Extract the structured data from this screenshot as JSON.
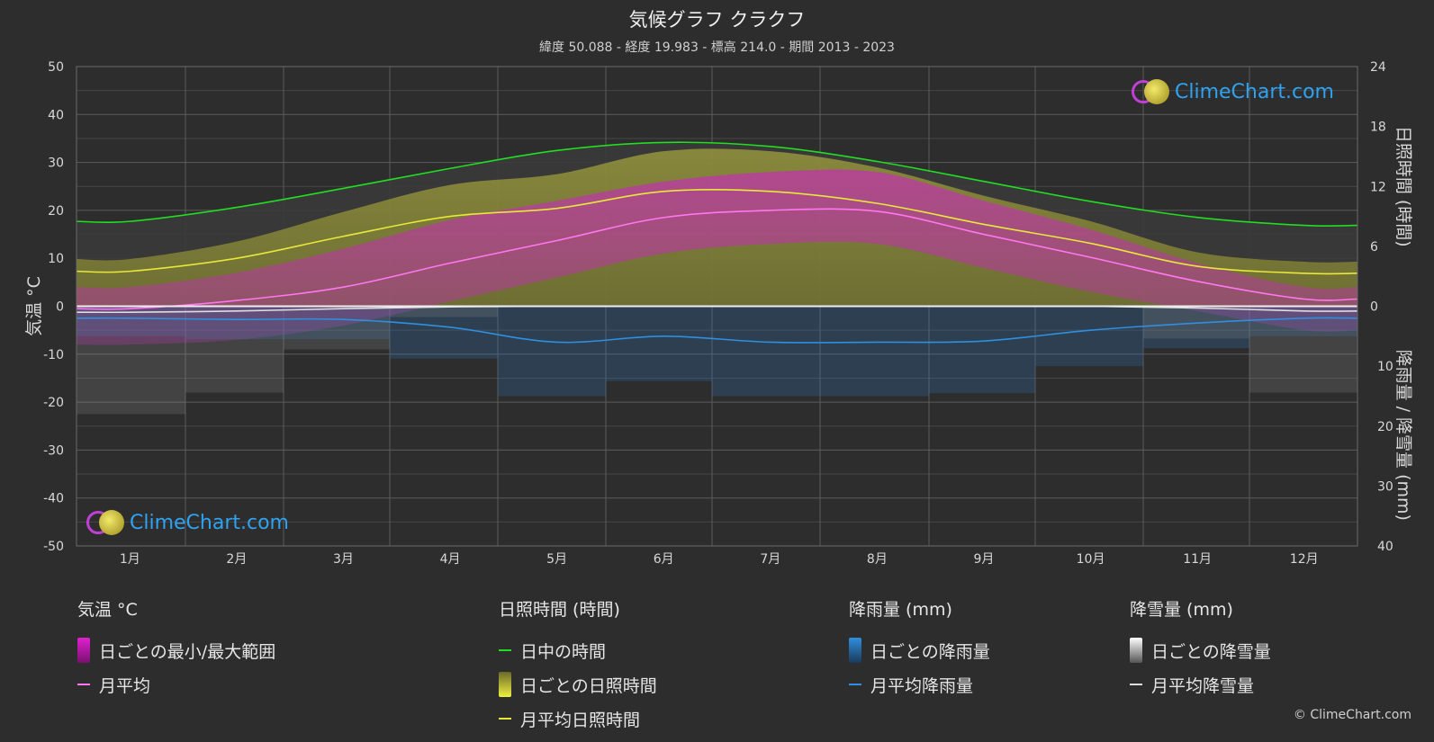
{
  "header": {
    "title": "気候グラフ クラクフ",
    "subtitle": "緯度 50.088 - 経度 19.983 - 標高 214.0 - 期間 2013 - 2023"
  },
  "logo_text": "ClimeChart.com",
  "copyright": "© ClimeChart.com",
  "chart_data": {
    "type": "line",
    "categories": [
      "1月",
      "2月",
      "3月",
      "4月",
      "5月",
      "6月",
      "7月",
      "8月",
      "9月",
      "10月",
      "11月",
      "12月"
    ],
    "left_axis": {
      "label": "気温 °C",
      "ylim": [
        -50,
        50
      ],
      "ticks": [
        "50",
        "40",
        "30",
        "20",
        "10",
        "0",
        "-10",
        "-20",
        "-30",
        "-40",
        "-50"
      ]
    },
    "right_axis_top": {
      "label": "日照時間 (時間)",
      "ylim": [
        0,
        24
      ],
      "ticks": [
        "24",
        "18",
        "12",
        "6",
        "0"
      ]
    },
    "right_axis_bottom": {
      "label": "降雨量 / 降雪量 (mm)",
      "ylim": [
        0,
        40
      ],
      "ticks": [
        "10",
        "20",
        "30",
        "40"
      ]
    },
    "grid": true,
    "series": [
      {
        "name": "日中の時間",
        "axis": "sunshine_hours",
        "color": "#22dd22",
        "values": [
          8.5,
          9.9,
          11.8,
          13.8,
          15.6,
          16.4,
          16.0,
          14.5,
          12.5,
          10.5,
          8.9,
          8.1
        ]
      },
      {
        "name": "月平均日照時間",
        "axis": "sunshine_hours",
        "color": "#e8e83a",
        "values": [
          3.5,
          4.8,
          7.0,
          9.0,
          9.8,
          11.5,
          11.5,
          10.3,
          8.2,
          6.3,
          4.0,
          3.3
        ]
      },
      {
        "name": "月平均",
        "axis": "temperature_c",
        "color": "#ff77ee",
        "values": [
          -0.5,
          1.2,
          4.0,
          9.0,
          13.7,
          18.5,
          20.0,
          19.8,
          15.0,
          10.2,
          5.2,
          1.5
        ]
      },
      {
        "name": "月平均降雨量",
        "axis": "precip_mm",
        "color": "#2f8fe0",
        "values": [
          2.0,
          2.2,
          2.2,
          3.5,
          6.0,
          5.0,
          6.0,
          6.0,
          5.8,
          4.0,
          2.8,
          2.0
        ]
      },
      {
        "name": "月平均降雪量",
        "axis": "precip_mm",
        "color": "#dddddd",
        "values": [
          1.0,
          0.8,
          0.4,
          0.1,
          0.0,
          0.0,
          0.0,
          0.0,
          0.0,
          0.0,
          0.3,
          0.8
        ]
      }
    ],
    "daily_temp_range_monthly": {
      "min": [
        -8,
        -7,
        -4,
        1,
        6,
        11,
        13,
        13,
        8,
        3,
        -1,
        -5
      ],
      "max": [
        4,
        7,
        12,
        18,
        22,
        26,
        28,
        28,
        22,
        16,
        9,
        4
      ]
    },
    "daily_sunshine_monthly": [
      3.5,
      4.8,
      7.0,
      9.0,
      9.8,
      11.5,
      11.5,
      10.3,
      8.2,
      6.3,
      4.0,
      3.3
    ],
    "daily_rain_monthly": [
      2.0,
      2.2,
      2.2,
      3.5,
      6.0,
      5.0,
      6.0,
      6.0,
      5.8,
      4.0,
      2.8,
      2.0
    ],
    "daily_snow_monthly": [
      1.0,
      0.8,
      0.4,
      0.1,
      0.0,
      0.0,
      0.0,
      0.0,
      0.0,
      0.0,
      0.3,
      0.8
    ]
  },
  "legend": {
    "temperature": {
      "title": "気温 °C",
      "items": [
        "日ごとの最小/最大範囲",
        "月平均"
      ]
    },
    "sunshine": {
      "title": "日照時間 (時間)",
      "items": [
        "日中の時間",
        "日ごとの日照時間",
        "月平均日照時間"
      ]
    },
    "rain": {
      "title": "降雨量 (mm)",
      "items": [
        "日ごとの降雨量",
        "月平均降雨量"
      ]
    },
    "snow": {
      "title": "降雪量 (mm)",
      "items": [
        "日ごとの降雪量",
        "月平均降雪量"
      ]
    }
  },
  "colors": {
    "background": "#2d2d2d",
    "daylight": "#22dd22",
    "sunshine": "#e8e83a",
    "temp_avg": "#ff77ee",
    "temp_range": "#e020d0",
    "rain": "#2f8fe0",
    "snow": "#dddddd"
  }
}
